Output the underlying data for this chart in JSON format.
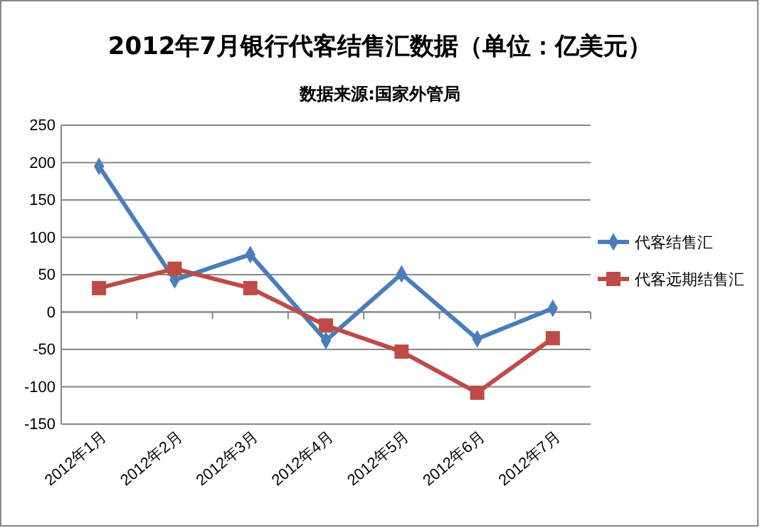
{
  "chart_data": {
    "type": "line",
    "title": "2012年7月银行代客结售汇数据（单位：亿美元）",
    "subtitle": "数据来源:国家外管局",
    "categories": [
      "2012年1月",
      "2012年2月",
      "2012年3月",
      "2012年4月",
      "2012年5月",
      "2012年6月",
      "2012年7月"
    ],
    "series": [
      {
        "name": "代客结售汇",
        "color": "#4a7ebb",
        "marker": "diamond",
        "values": [
          195,
          43,
          77,
          -38,
          51,
          -36,
          5
        ]
      },
      {
        "name": "代客远期结售汇",
        "color": "#be4b48",
        "marker": "square",
        "values": [
          32,
          58,
          32,
          -18,
          -53,
          -108,
          -35
        ]
      }
    ],
    "ylim": [
      -150,
      250
    ],
    "yticks": [
      -150,
      -100,
      -50,
      0,
      50,
      100,
      150,
      200,
      250
    ],
    "grid": "y",
    "legend": "right"
  }
}
